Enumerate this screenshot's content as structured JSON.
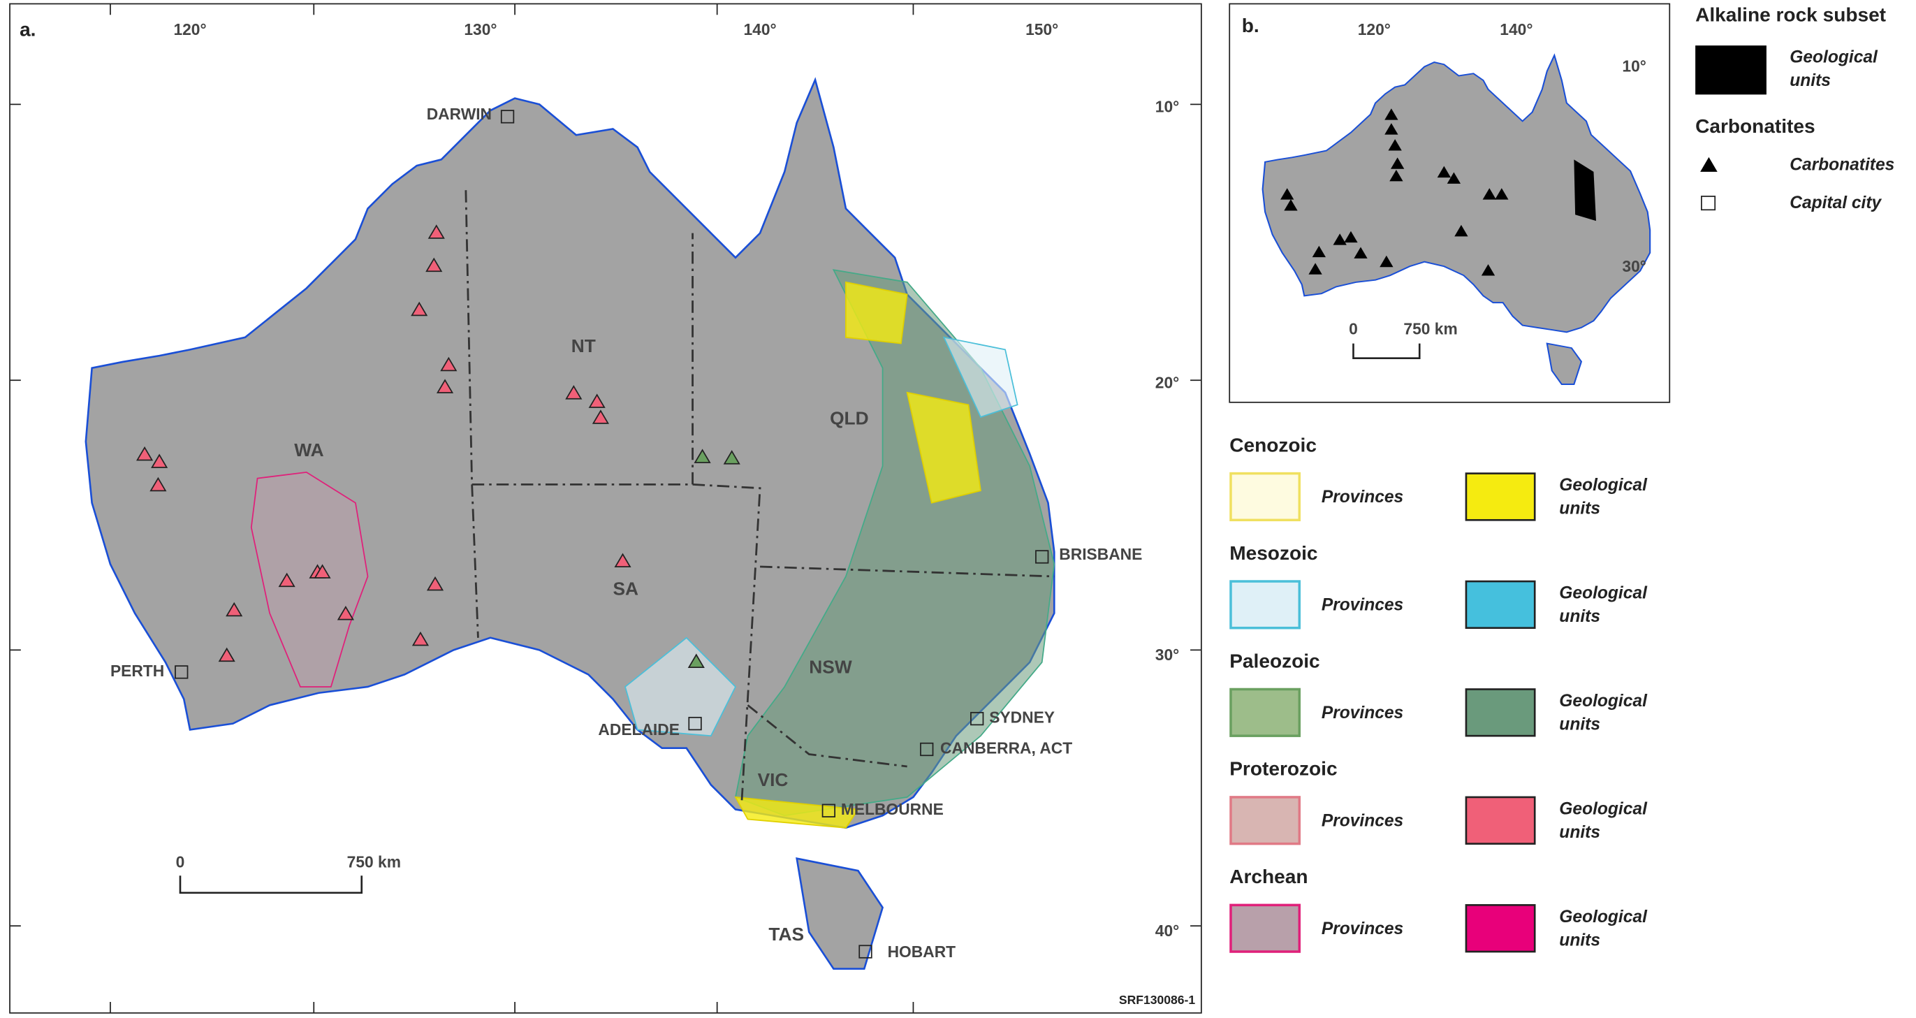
{
  "panel_a": {
    "label": "a.",
    "longitudes": [
      "120°",
      "130°",
      "140°",
      "150°"
    ],
    "latitudes": [
      "10°",
      "20°",
      "30°",
      "40°"
    ],
    "regions": [
      "WA",
      "NT",
      "SA",
      "QLD",
      "NSW",
      "VIC",
      "TAS"
    ],
    "cities": [
      "DARWIN",
      "PERTH",
      "ADELAIDE",
      "BRISBANE",
      "SYDNEY",
      "CANBERRA, ACT",
      "MELBOURNE",
      "HOBART"
    ],
    "scale_bar": [
      "0",
      "750 km"
    ],
    "figure_code": "SRF130086-1"
  },
  "panel_b": {
    "label": "b.",
    "longitudes": [
      "120°",
      "140°"
    ],
    "latitudes": [
      "10°",
      "30°"
    ],
    "scale_bar": [
      "0",
      "750 km"
    ]
  },
  "legend": {
    "alkaline_title": "Alkaline rock subset",
    "alkaline_item": "Geological units",
    "carbonatites_title": "Carbonatites",
    "items": [
      "Carbonatites",
      "Capital city"
    ],
    "eras": [
      {
        "name": "Cenozoic",
        "provinces": "Provinces",
        "units": "Geological units"
      },
      {
        "name": "Mesozoic",
        "provinces": "Provinces",
        "units": "Geological units"
      },
      {
        "name": "Paleozoic",
        "provinces": "Provinces",
        "units": "Geological units"
      },
      {
        "name": "Proterozoic",
        "provinces": "Provinces",
        "units": "Geological units"
      },
      {
        "name": "Archean",
        "provinces": "Provinces",
        "units": "Geological units"
      }
    ]
  }
}
